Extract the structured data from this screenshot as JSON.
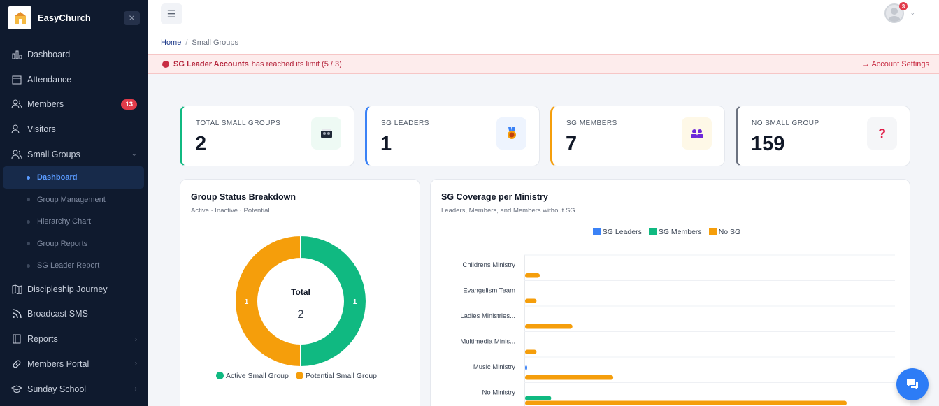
{
  "brand": {
    "name": "EasyChurch"
  },
  "sidebar": {
    "items": [
      {
        "label": "Dashboard",
        "icon": "bar-chart-icon"
      },
      {
        "label": "Attendance",
        "icon": "calendar-icon"
      },
      {
        "label": "Members",
        "icon": "users-icon",
        "badge": "13"
      },
      {
        "label": "Visitors",
        "icon": "user-group-icon"
      },
      {
        "label": "Small Groups",
        "icon": "users-icon",
        "expanded": true
      }
    ],
    "sub_items": [
      {
        "label": "Dashboard",
        "active": true
      },
      {
        "label": "Group Management"
      },
      {
        "label": "Hierarchy Chart"
      },
      {
        "label": "Group Reports"
      },
      {
        "label": "SG Leader Report"
      }
    ],
    "items_after": [
      {
        "label": "Discipleship Journey",
        "icon": "map-icon"
      },
      {
        "label": "Broadcast SMS",
        "icon": "rss-icon"
      },
      {
        "label": "Reports",
        "icon": "book-icon",
        "chevron": true
      },
      {
        "label": "Members Portal",
        "icon": "link-icon",
        "chevron": true
      },
      {
        "label": "Sunday School",
        "icon": "graduation-cap-icon",
        "chevron": true
      }
    ]
  },
  "topbar": {
    "notification_count": "3"
  },
  "breadcrumb": {
    "home": "Home",
    "current": "Small Groups"
  },
  "alert": {
    "strong": "SG Leader Accounts",
    "text": "has reached its limit (5 / 3)",
    "link": "→ Account Settings"
  },
  "stats": [
    {
      "label": "TOTAL SMALL GROUPS",
      "value": "2",
      "color": "#10b981",
      "icon": "groups-photo-icon",
      "icon_bg": "#eefaf4"
    },
    {
      "label": "SG LEADERS",
      "value": "1",
      "color": "#3b82f6",
      "icon": "medal-icon",
      "icon_bg": "#eef4fe"
    },
    {
      "label": "SG MEMBERS",
      "value": "7",
      "color": "#f59e0b",
      "icon": "people-icon",
      "icon_bg": "#fef8e7"
    },
    {
      "label": "NO SMALL GROUP",
      "value": "159",
      "color": "#6b7280",
      "icon": "question-icon",
      "icon_bg": "#f5f6f8"
    }
  ],
  "donut": {
    "title": "Group Status Breakdown",
    "subtitle": "Active · Inactive · Potential",
    "center_label": "Total",
    "center_value": "2",
    "chart_data": {
      "type": "pie",
      "slices": [
        {
          "name": "Active Small Group",
          "value": 1,
          "color": "#10b981"
        },
        {
          "name": "Potential Small Group",
          "value": 1,
          "color": "#f59e0b"
        }
      ]
    }
  },
  "coverage": {
    "title": "SG Coverage per Ministry",
    "subtitle": "Leaders, Members, and Members without SG",
    "chart_data": {
      "type": "bar",
      "orientation": "horizontal",
      "categories": [
        "Childrens Ministry",
        "Evangelism Team",
        "Ladies Ministries...",
        "Multimedia Minis...",
        "Music Ministry",
        "No Ministry"
      ],
      "series": [
        {
          "name": "SG Leaders",
          "color": "#3b82f6",
          "values": [
            0,
            0,
            0,
            0,
            0.1,
            0
          ]
        },
        {
          "name": "SG Members",
          "color": "#10b981",
          "values": [
            0,
            0,
            0,
            0,
            0,
            1.6
          ]
        },
        {
          "name": "No SG",
          "color": "#f59e0b",
          "values": [
            0.9,
            0.7,
            2.9,
            0.7,
            5.4,
            19.7
          ]
        }
      ],
      "xlim": [
        0,
        22.7
      ],
      "legend": "top",
      "grid": true
    }
  }
}
